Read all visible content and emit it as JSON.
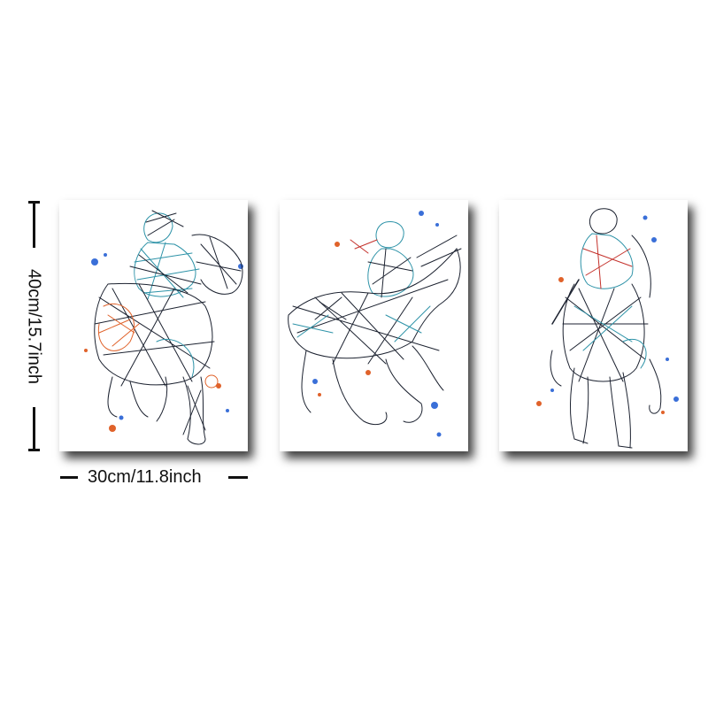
{
  "dimensions": {
    "height_label": "40cm/15.7inch",
    "width_label": "30cm/11.8inch"
  },
  "panels": [
    {
      "subject": "galloping racehorse with jockey, front three-quarter view"
    },
    {
      "subject": "racehorse with jockey galloping, side view"
    },
    {
      "subject": "racehorse with jockey, head-on view"
    }
  ],
  "colors": {
    "ink": "#1c2230",
    "teal": "#2e93a8",
    "orange": "#e0622a",
    "blue": "#3a6fd8",
    "red": "#c4312b",
    "shadow": "#000000"
  }
}
